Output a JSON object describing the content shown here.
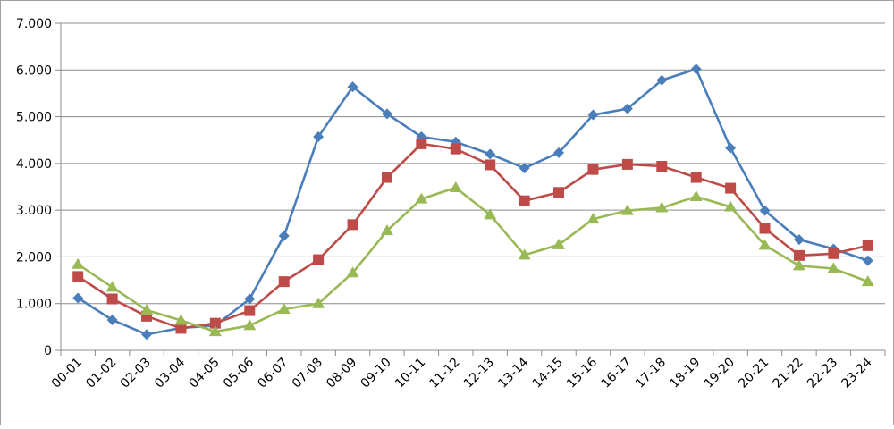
{
  "chart_data": {
    "type": "line",
    "categories": [
      "00-01",
      "01-02",
      "02-03",
      "03-04",
      "04-05",
      "05-06",
      "06-07",
      "07-08",
      "08-09",
      "09-10",
      "10-11",
      "11-12",
      "12-13",
      "13-14",
      "14-15",
      "15-16",
      "16-17",
      "17-18",
      "18-19",
      "19-20",
      "20-21",
      "21-22",
      "22-23",
      "23-24"
    ],
    "y_tick_labels": [
      "0",
      "1.000",
      "2.000",
      "3.000",
      "4.000",
      "5.000",
      "6.000",
      "7.000"
    ],
    "ylim": [
      0,
      7000
    ],
    "grid": true,
    "legend": "none",
    "series": [
      {
        "color": "#4a7ebb",
        "marker": "diamond",
        "values": [
          1120,
          650,
          340,
          480,
          530,
          1100,
          2450,
          4570,
          5640,
          5060,
          4570,
          4460,
          4200,
          3900,
          4230,
          5040,
          5170,
          5780,
          6020,
          4330,
          2990,
          2370,
          2170,
          1920
        ]
      },
      {
        "color": "#be4b48",
        "marker": "square",
        "values": [
          1580,
          1100,
          730,
          470,
          580,
          850,
          1470,
          1940,
          2690,
          3700,
          4420,
          4310,
          3970,
          3200,
          3380,
          3870,
          3980,
          3940,
          3700,
          3470,
          2610,
          2030,
          2070,
          2240
        ]
      },
      {
        "color": "#98b954",
        "marker": "triangle",
        "values": [
          1840,
          1350,
          860,
          640,
          400,
          530,
          880,
          1000,
          1660,
          2560,
          3240,
          3480,
          2900,
          2040,
          2260,
          2810,
          2990,
          3050,
          3290,
          3070,
          2250,
          1810,
          1750,
          1470
        ]
      }
    ]
  }
}
